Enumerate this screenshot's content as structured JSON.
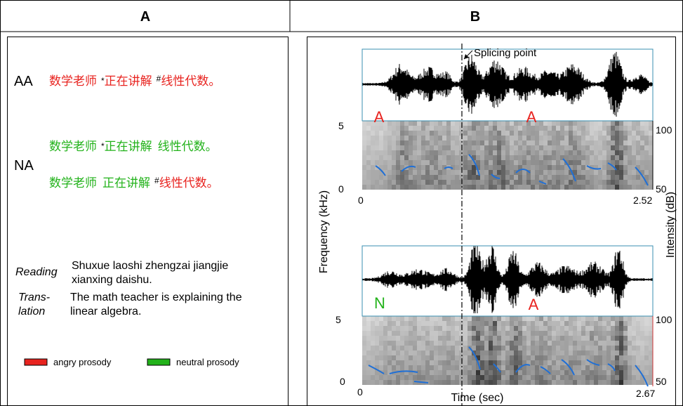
{
  "panel_a": {
    "label": "A",
    "aa": {
      "label": "AA",
      "parts": [
        "数学老师",
        "*",
        "正在讲解",
        "#",
        "线性代数。"
      ]
    },
    "na": {
      "label": "NA",
      "line1": [
        "数学老师",
        "*",
        "正在讲解",
        "线性代数。"
      ],
      "line2": [
        "数学老师",
        "正在讲解",
        "#",
        "线性代数。"
      ]
    },
    "reading": {
      "label": "Reading",
      "text_lines": [
        "Shuxue laoshi zhengzai jiangjie",
        "xianxing daishu."
      ]
    },
    "translation": {
      "label_lines": [
        "Trans-",
        "lation"
      ],
      "text_lines": [
        "The math teacher is explaining the",
        "linear algebra."
      ]
    },
    "legend": [
      "angry prosody",
      "neutral prosody"
    ]
  },
  "panel_b": {
    "label": "B",
    "splicing_label": "Splicing point",
    "top": {
      "left_tag": "A",
      "right_tag": "A",
      "freq_max": "5",
      "freq_min": "0",
      "time_start": "0",
      "time_end": "2.52",
      "int_max": "100",
      "int_min": "50"
    },
    "bottom": {
      "left_tag": "N",
      "right_tag": "A",
      "freq_max": "5",
      "freq_min": "0",
      "time_start": "0",
      "time_end": "2.67",
      "int_max": "100",
      "int_min": "50"
    },
    "y_label": "Frequency (kHz)",
    "y2_label": "Intensity (dB)",
    "x_label": "Time (sec)"
  }
}
